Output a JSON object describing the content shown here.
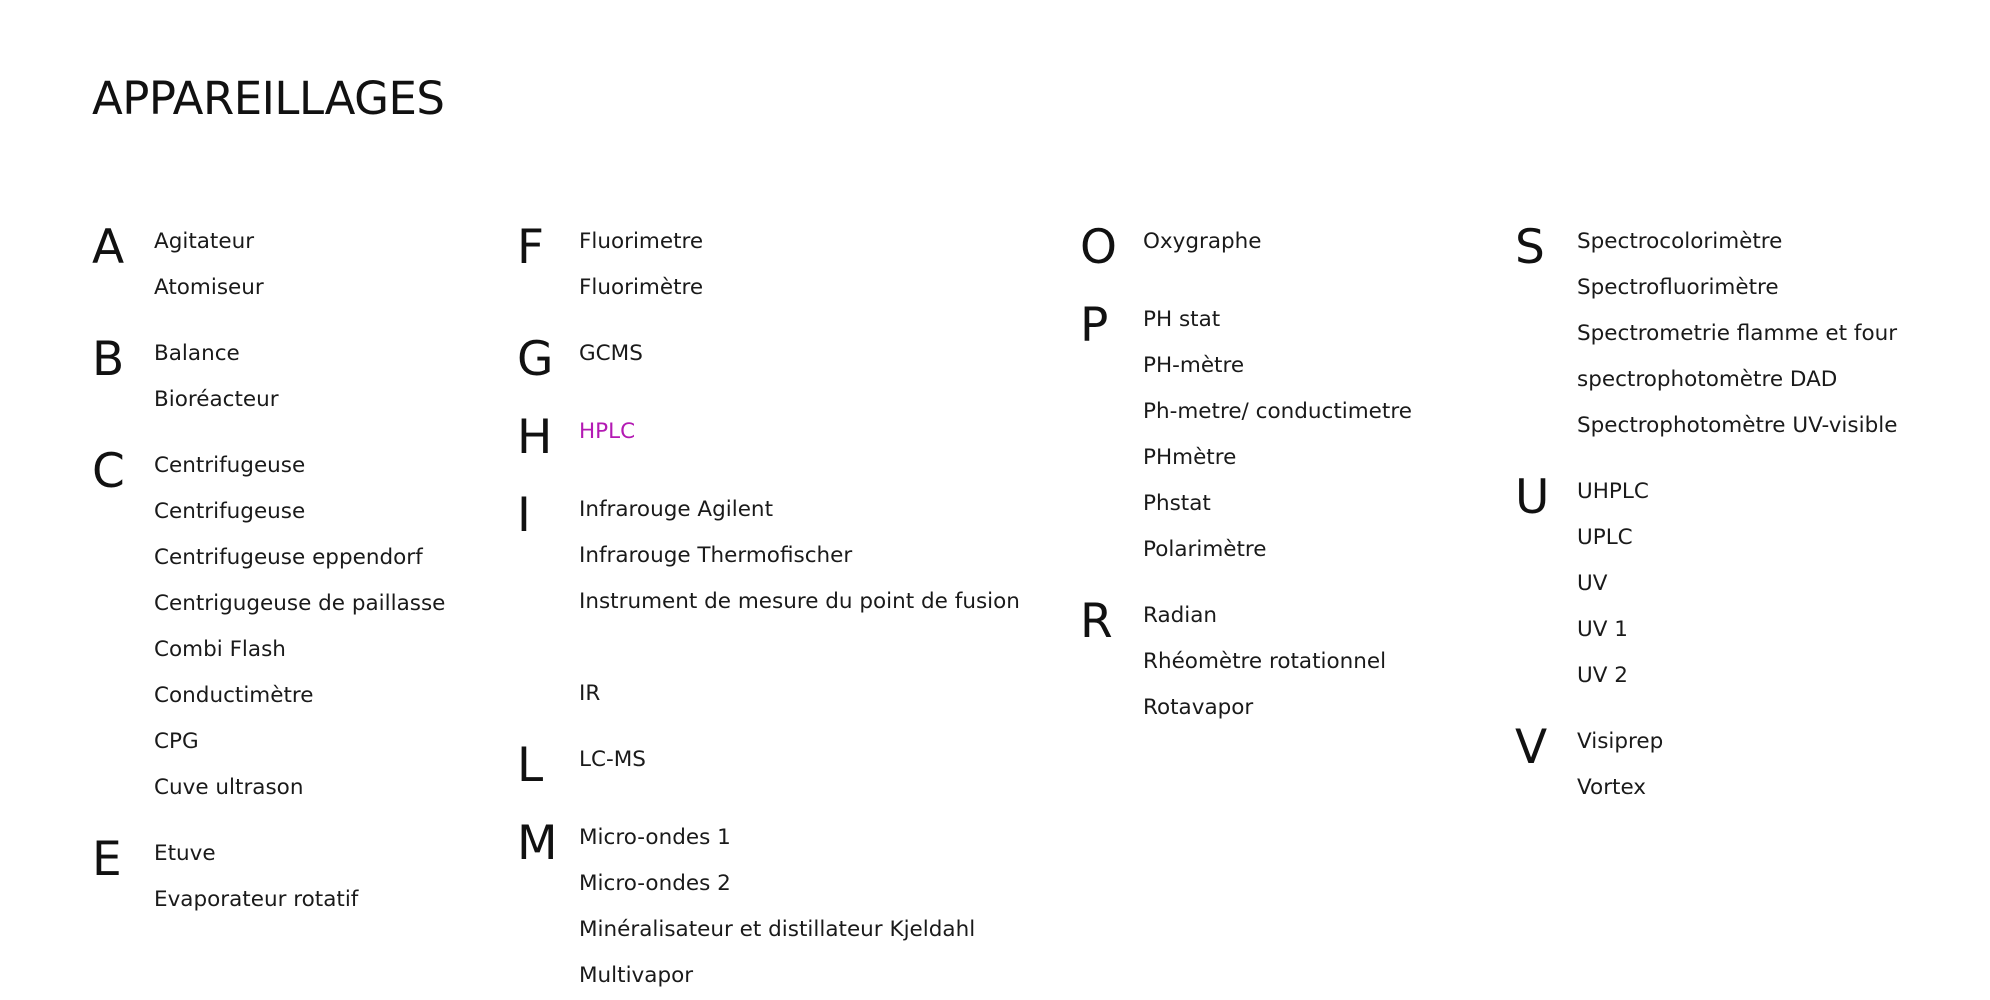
{
  "page": {
    "title": "APPAREILLAGES",
    "accent_color": "#b31ab3"
  },
  "columns": [
    {
      "groups": [
        {
          "letter": "A",
          "items": [
            {
              "label": "Agitateur"
            },
            {
              "label": "Atomiseur"
            }
          ]
        },
        {
          "letter": "B",
          "items": [
            {
              "label": "Balance"
            },
            {
              "label": "Bioréacteur"
            }
          ]
        },
        {
          "letter": "C",
          "items": [
            {
              "label": "Centrifugeuse"
            },
            {
              "label": "Centrifugeuse"
            },
            {
              "label": "Centrifugeuse eppendorf"
            },
            {
              "label": "Centrigugeuse de paillasse"
            },
            {
              "label": "Combi Flash"
            },
            {
              "label": "Conductimètre"
            },
            {
              "label": "CPG"
            },
            {
              "label": "Cuve ultrason"
            }
          ]
        },
        {
          "letter": "E",
          "items": [
            {
              "label": "Etuve"
            },
            {
              "label": "Evaporateur rotatif"
            }
          ]
        }
      ]
    },
    {
      "groups": [
        {
          "letter": "F",
          "items": [
            {
              "label": "Fluorimetre"
            },
            {
              "label": "Fluorimètre"
            }
          ]
        },
        {
          "letter": "G",
          "items": [
            {
              "label": "GCMS"
            }
          ]
        },
        {
          "letter": "H",
          "items": [
            {
              "label": "HPLC",
              "active": true
            }
          ]
        },
        {
          "letter": "I",
          "items": [
            {
              "label": "Infrarouge Agilent"
            },
            {
              "label": "Infrarouge Thermofischer"
            },
            {
              "label": "Instrument de mesure du point de fusion"
            },
            {
              "label": ""
            },
            {
              "label": "IR"
            }
          ]
        },
        {
          "letter": "L",
          "items": [
            {
              "label": "LC-MS"
            }
          ]
        },
        {
          "letter": "M",
          "items": [
            {
              "label": "Micro-ondes 1"
            },
            {
              "label": "Micro-ondes 2"
            },
            {
              "label": "Minéralisateur et distillateur Kjeldahl"
            },
            {
              "label": "Multivapor"
            }
          ]
        }
      ]
    },
    {
      "groups": [
        {
          "letter": "O",
          "items": [
            {
              "label": "Oxygraphe"
            }
          ]
        },
        {
          "letter": "P",
          "items": [
            {
              "label": "PH stat"
            },
            {
              "label": "PH-mètre"
            },
            {
              "label": "Ph-metre/ conductimetre"
            },
            {
              "label": "PHmètre"
            },
            {
              "label": "Phstat"
            },
            {
              "label": "Polarimètre"
            }
          ]
        },
        {
          "letter": "R",
          "items": [
            {
              "label": "Radian"
            },
            {
              "label": "Rhéomètre rotationnel"
            },
            {
              "label": "Rotavapor"
            }
          ]
        }
      ]
    },
    {
      "groups": [
        {
          "letter": "S",
          "items": [
            {
              "label": "Spectrocolorimètre"
            },
            {
              "label": "Spectrofluorimètre"
            },
            {
              "label": "Spectrometrie flamme et four"
            },
            {
              "label": "spectrophotomètre DAD"
            },
            {
              "label": "Spectrophotomètre UV-visible"
            }
          ]
        },
        {
          "letter": "U",
          "items": [
            {
              "label": "UHPLC"
            },
            {
              "label": "UPLC"
            },
            {
              "label": "UV"
            },
            {
              "label": "UV 1"
            },
            {
              "label": "UV 2"
            }
          ]
        },
        {
          "letter": "V",
          "items": [
            {
              "label": "Visiprep"
            },
            {
              "label": "Vortex"
            }
          ]
        }
      ]
    }
  ]
}
